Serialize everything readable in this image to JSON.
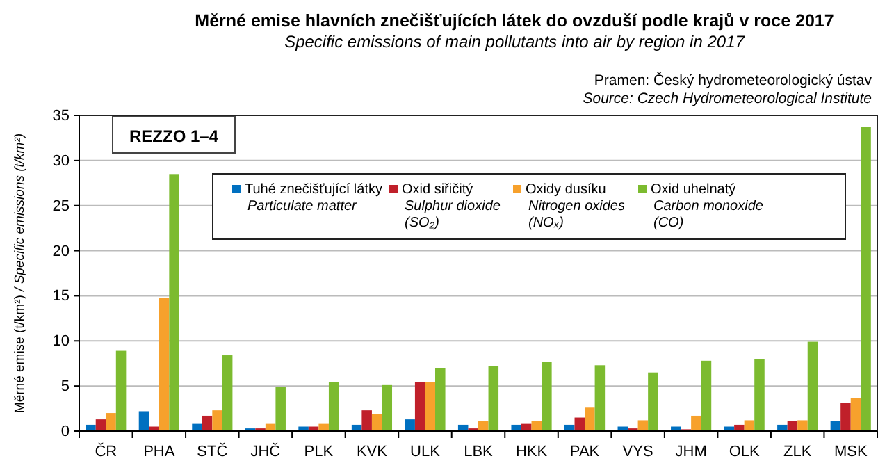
{
  "chart_data": {
    "type": "bar",
    "title": "Měrné emise hlavních znečišťujících látek do ovzduší podle krajů v roce 2017",
    "subtitle": "Specific emissions of main pollutants into air by region in 2017",
    "annotations": [
      "Pramen: Český hydrometeorologický ústav",
      "Source: Czech Hydrometeorological Institute",
      "REZZO 1–4"
    ],
    "ylabel": "Měrné emise (t/km²) / Specific emissions (t/km²)",
    "categories": [
      "ČR",
      "PHA",
      "STČ",
      "JHČ",
      "PLK",
      "KVK",
      "ULK",
      "LBK",
      "HKK",
      "PAK",
      "VYS",
      "JHM",
      "OLK",
      "ZLK",
      "MSK"
    ],
    "series": [
      {
        "name": "Tuhé znečišťující látky\nParticulate matter",
        "color": "#0070c0",
        "values": [
          0.7,
          2.2,
          0.8,
          0.3,
          0.5,
          0.7,
          1.3,
          0.7,
          0.7,
          0.7,
          0.5,
          0.5,
          0.5,
          0.7,
          1.1
        ]
      },
      {
        "name": "Oxid siřičitý\nSulphur dioxide\n(SO₂)",
        "color": "#c0202a",
        "values": [
          1.3,
          0.5,
          1.7,
          0.3,
          0.5,
          2.3,
          5.4,
          0.3,
          0.8,
          1.5,
          0.3,
          0.2,
          0.7,
          1.1,
          3.1
        ]
      },
      {
        "name": "Oxidy dusíku\nNitrogen oxides\n(NOₓ)",
        "color": "#f7a12c",
        "values": [
          2.0,
          14.8,
          2.3,
          0.8,
          0.8,
          1.9,
          5.4,
          1.1,
          1.1,
          2.6,
          1.2,
          1.7,
          1.2,
          1.2,
          3.7
        ]
      },
      {
        "name": "Oxid uhelnatý\nCarbon monoxide\n(CO)",
        "color": "#7cbb2f",
        "values": [
          8.9,
          28.5,
          8.4,
          4.9,
          5.4,
          5.1,
          7.0,
          7.2,
          7.7,
          7.3,
          6.5,
          7.8,
          8.0,
          9.9,
          33.7
        ]
      }
    ],
    "ylim": [
      0,
      35
    ],
    "yticks": [
      0,
      5,
      10,
      15,
      20,
      25,
      30,
      35
    ],
    "grid": "y",
    "legend": "top right"
  }
}
